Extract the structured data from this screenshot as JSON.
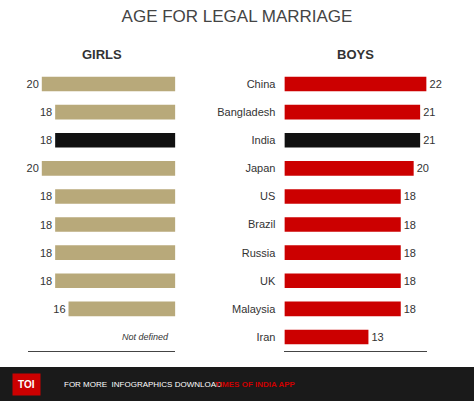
{
  "chart_data": {
    "type": "bar",
    "orientation": "horizontal",
    "title": "AGE FOR LEGAL MARRIAGE",
    "categories": [
      "China",
      "Bangladesh",
      "India",
      "Japan",
      "US",
      "Brazil",
      "Russia",
      "UK",
      "Malaysia",
      "Iran"
    ],
    "series": [
      {
        "name": "GIRLS",
        "values": [
          20,
          18,
          18,
          20,
          18,
          18,
          18,
          18,
          16,
          null
        ],
        "colors": [
          "#b8a97a",
          "#b8a97a",
          "#111111",
          "#b8a97a",
          "#b8a97a",
          "#b8a97a",
          "#b8a97a",
          "#b8a97a",
          "#b8a97a",
          null
        ]
      },
      {
        "name": "BOYS",
        "values": [
          22,
          21,
          21,
          20,
          18,
          18,
          18,
          18,
          18,
          13
        ],
        "colors": [
          "#cc0000",
          "#cc0000",
          "#111111",
          "#cc0000",
          "#cc0000",
          "#cc0000",
          "#cc0000",
          "#cc0000",
          "#cc0000",
          "#cc0000"
        ]
      }
    ],
    "xlim": [
      0,
      22
    ],
    "data_labels": true,
    "tick_labels": "y",
    "grid": false,
    "annotations": [
      {
        "text": "Not defined",
        "category": "Iran",
        "series": "GIRLS"
      },
      {
        "text": "TOI"
      },
      {
        "text": "FOR MORE  INFOGRAPHICS DOWNLOAD "
      },
      {
        "text": "TIMES OF INDIA APP",
        "color": "#cc0000"
      }
    ]
  }
}
